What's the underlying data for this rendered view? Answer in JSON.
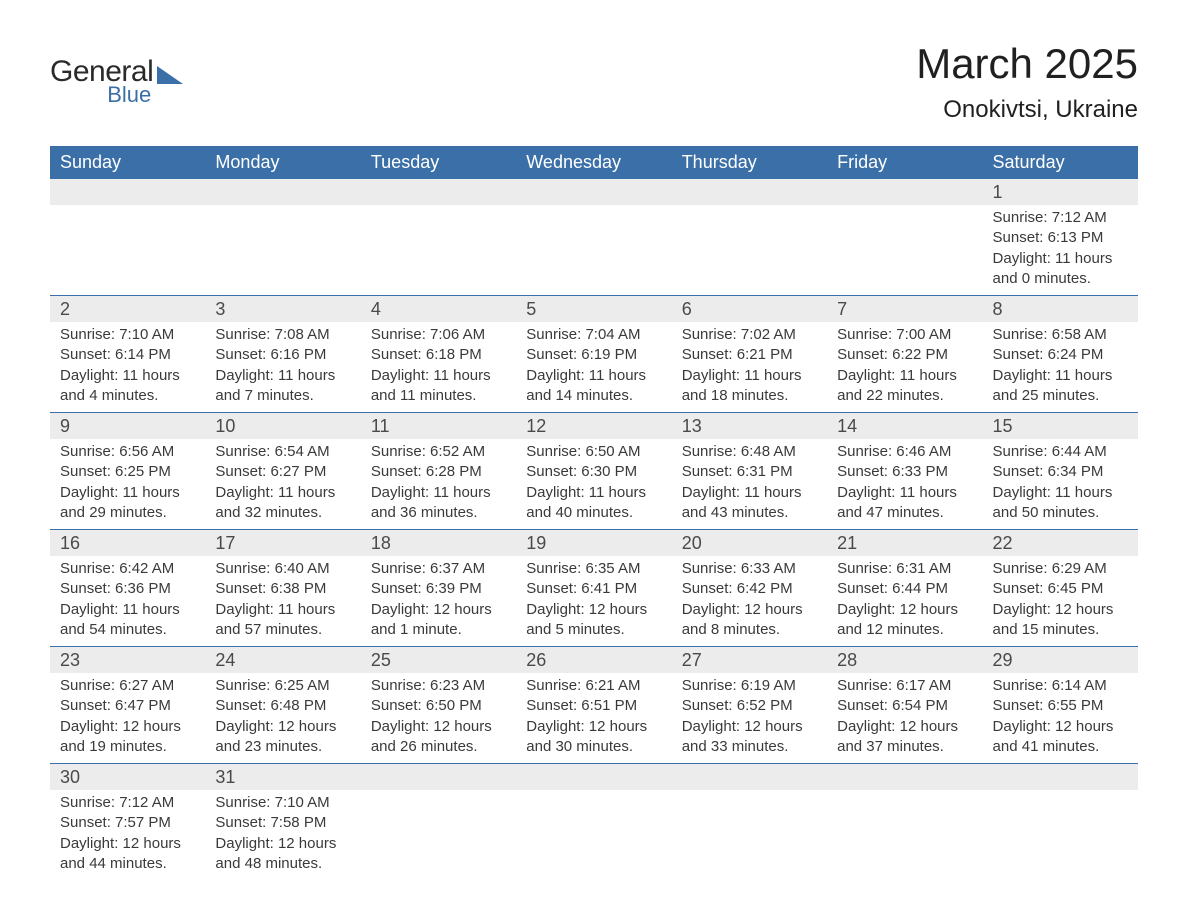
{
  "logo": {
    "text1": "General",
    "text2": "Blue",
    "shape_color": "#3b6fa8"
  },
  "title": "March 2025",
  "location": "Onokivtsi, Ukraine",
  "day_headers": [
    "Sunday",
    "Monday",
    "Tuesday",
    "Wednesday",
    "Thursday",
    "Friday",
    "Saturday"
  ],
  "colors": {
    "header_bg": "#3b6fa8",
    "header_text": "#ffffff",
    "daynum_bg": "#ececec",
    "border": "#3b6fa8",
    "text": "#3a3a3a"
  },
  "weeks": [
    [
      null,
      null,
      null,
      null,
      null,
      null,
      {
        "day": "1",
        "sunrise": "Sunrise: 7:12 AM",
        "sunset": "Sunset: 6:13 PM",
        "daylight1": "Daylight: 11 hours",
        "daylight2": "and 0 minutes."
      }
    ],
    [
      {
        "day": "2",
        "sunrise": "Sunrise: 7:10 AM",
        "sunset": "Sunset: 6:14 PM",
        "daylight1": "Daylight: 11 hours",
        "daylight2": "and 4 minutes."
      },
      {
        "day": "3",
        "sunrise": "Sunrise: 7:08 AM",
        "sunset": "Sunset: 6:16 PM",
        "daylight1": "Daylight: 11 hours",
        "daylight2": "and 7 minutes."
      },
      {
        "day": "4",
        "sunrise": "Sunrise: 7:06 AM",
        "sunset": "Sunset: 6:18 PM",
        "daylight1": "Daylight: 11 hours",
        "daylight2": "and 11 minutes."
      },
      {
        "day": "5",
        "sunrise": "Sunrise: 7:04 AM",
        "sunset": "Sunset: 6:19 PM",
        "daylight1": "Daylight: 11 hours",
        "daylight2": "and 14 minutes."
      },
      {
        "day": "6",
        "sunrise": "Sunrise: 7:02 AM",
        "sunset": "Sunset: 6:21 PM",
        "daylight1": "Daylight: 11 hours",
        "daylight2": "and 18 minutes."
      },
      {
        "day": "7",
        "sunrise": "Sunrise: 7:00 AM",
        "sunset": "Sunset: 6:22 PM",
        "daylight1": "Daylight: 11 hours",
        "daylight2": "and 22 minutes."
      },
      {
        "day": "8",
        "sunrise": "Sunrise: 6:58 AM",
        "sunset": "Sunset: 6:24 PM",
        "daylight1": "Daylight: 11 hours",
        "daylight2": "and 25 minutes."
      }
    ],
    [
      {
        "day": "9",
        "sunrise": "Sunrise: 6:56 AM",
        "sunset": "Sunset: 6:25 PM",
        "daylight1": "Daylight: 11 hours",
        "daylight2": "and 29 minutes."
      },
      {
        "day": "10",
        "sunrise": "Sunrise: 6:54 AM",
        "sunset": "Sunset: 6:27 PM",
        "daylight1": "Daylight: 11 hours",
        "daylight2": "and 32 minutes."
      },
      {
        "day": "11",
        "sunrise": "Sunrise: 6:52 AM",
        "sunset": "Sunset: 6:28 PM",
        "daylight1": "Daylight: 11 hours",
        "daylight2": "and 36 minutes."
      },
      {
        "day": "12",
        "sunrise": "Sunrise: 6:50 AM",
        "sunset": "Sunset: 6:30 PM",
        "daylight1": "Daylight: 11 hours",
        "daylight2": "and 40 minutes."
      },
      {
        "day": "13",
        "sunrise": "Sunrise: 6:48 AM",
        "sunset": "Sunset: 6:31 PM",
        "daylight1": "Daylight: 11 hours",
        "daylight2": "and 43 minutes."
      },
      {
        "day": "14",
        "sunrise": "Sunrise: 6:46 AM",
        "sunset": "Sunset: 6:33 PM",
        "daylight1": "Daylight: 11 hours",
        "daylight2": "and 47 minutes."
      },
      {
        "day": "15",
        "sunrise": "Sunrise: 6:44 AM",
        "sunset": "Sunset: 6:34 PM",
        "daylight1": "Daylight: 11 hours",
        "daylight2": "and 50 minutes."
      }
    ],
    [
      {
        "day": "16",
        "sunrise": "Sunrise: 6:42 AM",
        "sunset": "Sunset: 6:36 PM",
        "daylight1": "Daylight: 11 hours",
        "daylight2": "and 54 minutes."
      },
      {
        "day": "17",
        "sunrise": "Sunrise: 6:40 AM",
        "sunset": "Sunset: 6:38 PM",
        "daylight1": "Daylight: 11 hours",
        "daylight2": "and 57 minutes."
      },
      {
        "day": "18",
        "sunrise": "Sunrise: 6:37 AM",
        "sunset": "Sunset: 6:39 PM",
        "daylight1": "Daylight: 12 hours",
        "daylight2": "and 1 minute."
      },
      {
        "day": "19",
        "sunrise": "Sunrise: 6:35 AM",
        "sunset": "Sunset: 6:41 PM",
        "daylight1": "Daylight: 12 hours",
        "daylight2": "and 5 minutes."
      },
      {
        "day": "20",
        "sunrise": "Sunrise: 6:33 AM",
        "sunset": "Sunset: 6:42 PM",
        "daylight1": "Daylight: 12 hours",
        "daylight2": "and 8 minutes."
      },
      {
        "day": "21",
        "sunrise": "Sunrise: 6:31 AM",
        "sunset": "Sunset: 6:44 PM",
        "daylight1": "Daylight: 12 hours",
        "daylight2": "and 12 minutes."
      },
      {
        "day": "22",
        "sunrise": "Sunrise: 6:29 AM",
        "sunset": "Sunset: 6:45 PM",
        "daylight1": "Daylight: 12 hours",
        "daylight2": "and 15 minutes."
      }
    ],
    [
      {
        "day": "23",
        "sunrise": "Sunrise: 6:27 AM",
        "sunset": "Sunset: 6:47 PM",
        "daylight1": "Daylight: 12 hours",
        "daylight2": "and 19 minutes."
      },
      {
        "day": "24",
        "sunrise": "Sunrise: 6:25 AM",
        "sunset": "Sunset: 6:48 PM",
        "daylight1": "Daylight: 12 hours",
        "daylight2": "and 23 minutes."
      },
      {
        "day": "25",
        "sunrise": "Sunrise: 6:23 AM",
        "sunset": "Sunset: 6:50 PM",
        "daylight1": "Daylight: 12 hours",
        "daylight2": "and 26 minutes."
      },
      {
        "day": "26",
        "sunrise": "Sunrise: 6:21 AM",
        "sunset": "Sunset: 6:51 PM",
        "daylight1": "Daylight: 12 hours",
        "daylight2": "and 30 minutes."
      },
      {
        "day": "27",
        "sunrise": "Sunrise: 6:19 AM",
        "sunset": "Sunset: 6:52 PM",
        "daylight1": "Daylight: 12 hours",
        "daylight2": "and 33 minutes."
      },
      {
        "day": "28",
        "sunrise": "Sunrise: 6:17 AM",
        "sunset": "Sunset: 6:54 PM",
        "daylight1": "Daylight: 12 hours",
        "daylight2": "and 37 minutes."
      },
      {
        "day": "29",
        "sunrise": "Sunrise: 6:14 AM",
        "sunset": "Sunset: 6:55 PM",
        "daylight1": "Daylight: 12 hours",
        "daylight2": "and 41 minutes."
      }
    ],
    [
      {
        "day": "30",
        "sunrise": "Sunrise: 7:12 AM",
        "sunset": "Sunset: 7:57 PM",
        "daylight1": "Daylight: 12 hours",
        "daylight2": "and 44 minutes."
      },
      {
        "day": "31",
        "sunrise": "Sunrise: 7:10 AM",
        "sunset": "Sunset: 7:58 PM",
        "daylight1": "Daylight: 12 hours",
        "daylight2": "and 48 minutes."
      },
      null,
      null,
      null,
      null,
      null
    ]
  ]
}
